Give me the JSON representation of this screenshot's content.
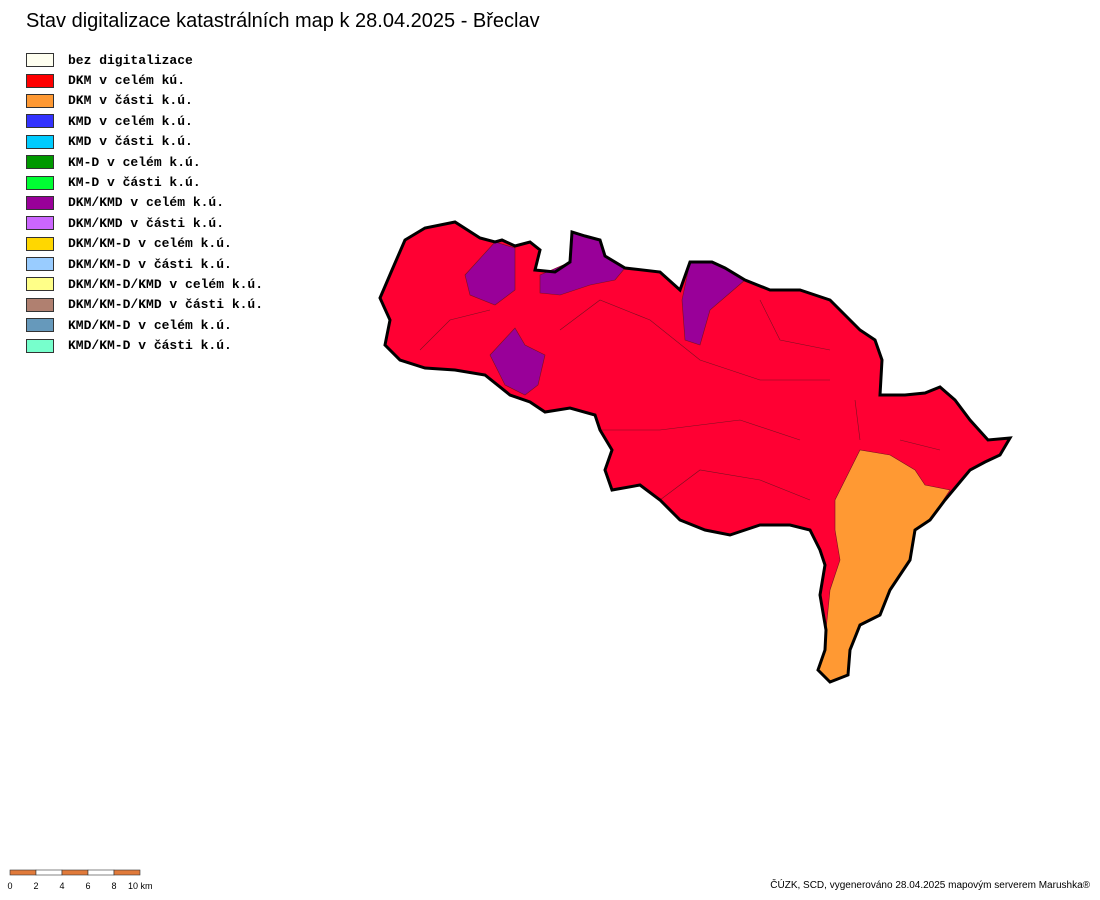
{
  "title": "Stav digitalizace katastrálních map k 28.04.2025 - Břeclav",
  "legend": [
    {
      "label": "bez digitalizace",
      "color": "#fffff0"
    },
    {
      "label": "DKM v celém kú.",
      "color": "#ff0000"
    },
    {
      "label": "DKM v části k.ú.",
      "color": "#ff9933"
    },
    {
      "label": "KMD v celém k.ú.",
      "color": "#3333ff"
    },
    {
      "label": "KMD v části k.ú.",
      "color": "#00ccff"
    },
    {
      "label": "KM-D v celém k.ú.",
      "color": "#009900"
    },
    {
      "label": "KM-D v části k.ú.",
      "color": "#00ff33"
    },
    {
      "label": "DKM/KMD v celém k.ú.",
      "color": "#990099"
    },
    {
      "label": "DKM/KMD v části k.ú.",
      "color": "#cc66ff"
    },
    {
      "label": "DKM/KM-D v celém k.ú.",
      "color": "#ffd700"
    },
    {
      "label": "DKM/KM-D v části k.ú.",
      "color": "#99ccff"
    },
    {
      "label": "DKM/KM-D/KMD v celém k.ú.",
      "color": "#ffff88"
    },
    {
      "label": "DKM/KM-D/KMD v části k.ú.",
      "color": "#b08070"
    },
    {
      "label": "KMD/KM-D v celém k.ú.",
      "color": "#6699bb"
    },
    {
      "label": "KMD/KM-D v části k.ú.",
      "color": "#77ffcc"
    }
  ],
  "scale": {
    "labels": [
      "0",
      "2",
      "4",
      "6",
      "8",
      "10 km"
    ]
  },
  "footer": "ČÚZK, SCD, vygenerováno 28.04.2025 mapovým serverem Marushka®"
}
